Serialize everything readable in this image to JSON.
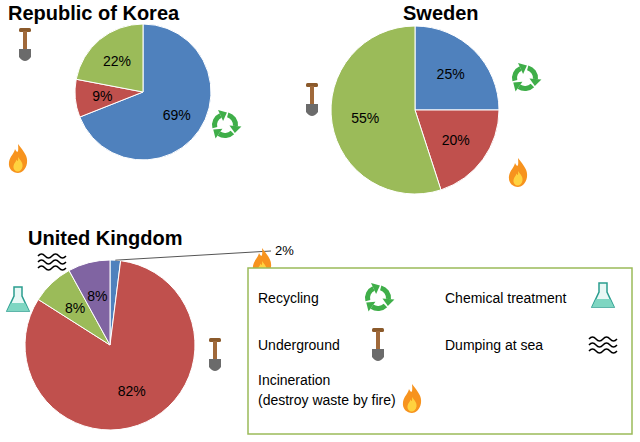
{
  "chart_data": [
    {
      "type": "pie",
      "title": "Republic of Korea",
      "categories": [
        "Recycling",
        "Incineration (destroy waste by fire)",
        "Underground"
      ],
      "values": [
        69,
        9,
        22
      ],
      "value_labels": [
        "69%",
        "9%",
        "22%"
      ],
      "colors": [
        "#4f81bd",
        "#c0504d",
        "#9bbb59"
      ],
      "data_labels": true
    },
    {
      "type": "pie",
      "title": "Sweden",
      "categories": [
        "Recycling",
        "Incineration (destroy waste by fire)",
        "Underground"
      ],
      "values": [
        25,
        20,
        55
      ],
      "value_labels": [
        "25%",
        "20%",
        "55%"
      ],
      "colors": [
        "#4f81bd",
        "#c0504d",
        "#9bbb59"
      ],
      "data_labels": true
    },
    {
      "type": "pie",
      "title": "United Kingdom",
      "categories": [
        "Incineration (destroy waste by fire)",
        "Underground",
        "Chemical treatment",
        "Dumping at sea"
      ],
      "values": [
        2,
        82,
        8,
        8
      ],
      "value_labels": [
        "2%",
        "82%",
        "8%",
        "8%"
      ],
      "colors": [
        "#4f81bd",
        "#c0504d",
        "#9bbb59",
        "#8064a2"
      ],
      "data_labels": true
    }
  ],
  "legend_items": [
    "Recycling",
    "Chemical treatment",
    "Underground",
    "Dumping at sea",
    "Incineration (destroy waste by fire)"
  ]
}
